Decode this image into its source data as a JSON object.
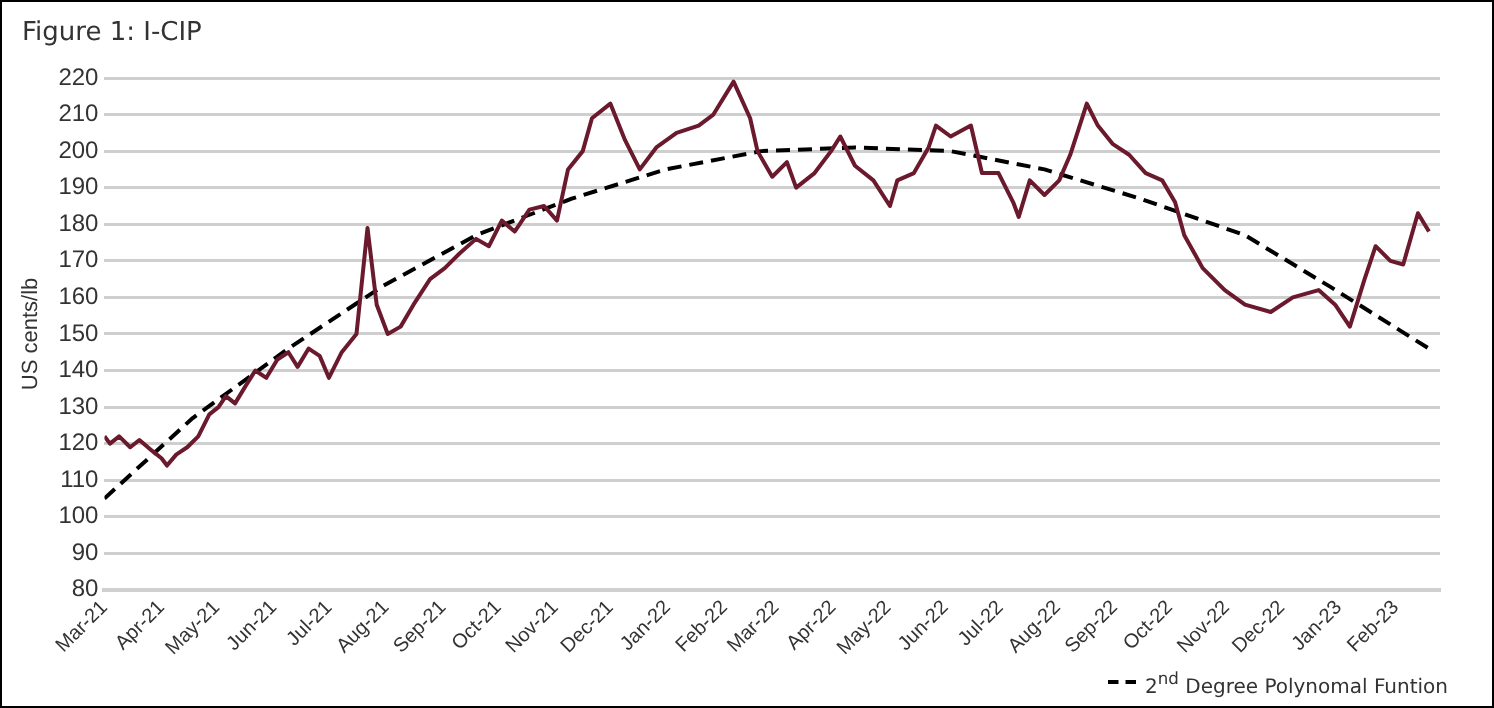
{
  "chart_data": {
    "type": "line",
    "title": "Figure 1: I-CIP",
    "ylabel": "US cents/lb",
    "series": [
      {
        "color": "#6b1a2e",
        "x": [
          "2021-03-01",
          "2021-03-04",
          "2021-03-09",
          "2021-03-15",
          "2021-03-20",
          "2021-03-27",
          "2021-04-01",
          "2021-04-04",
          "2021-04-09",
          "2021-04-15",
          "2021-04-21",
          "2021-04-27",
          "2021-05-02",
          "2021-05-06",
          "2021-05-11",
          "2021-05-17",
          "2021-05-22",
          "2021-05-28",
          "2021-06-03",
          "2021-06-09",
          "2021-06-14",
          "2021-06-20",
          "2021-06-26",
          "2021-07-01",
          "2021-07-08",
          "2021-07-16",
          "2021-07-22",
          "2021-07-27",
          "2021-08-02",
          "2021-08-09",
          "2021-08-16",
          "2021-08-25",
          "2021-09-02",
          "2021-09-10",
          "2021-09-19",
          "2021-09-26",
          "2021-10-03",
          "2021-10-10",
          "2021-10-18",
          "2021-10-26",
          "2021-11-02",
          "2021-11-08",
          "2021-11-16",
          "2021-11-21",
          "2021-12-01",
          "2021-12-09",
          "2021-12-17",
          "2021-12-26",
          "2022-01-06",
          "2022-01-18",
          "2022-01-26",
          "2022-02-06",
          "2022-02-15",
          "2022-02-19",
          "2022-02-27",
          "2022-03-07",
          "2022-03-12",
          "2022-03-22",
          "2022-03-31",
          "2022-04-05",
          "2022-04-13",
          "2022-04-23",
          "2022-05-02",
          "2022-05-06",
          "2022-05-15",
          "2022-05-23",
          "2022-05-27",
          "2022-06-04",
          "2022-06-15",
          "2022-06-21",
          "2022-06-30",
          "2022-07-08",
          "2022-07-11",
          "2022-07-17",
          "2022-07-25",
          "2022-08-02",
          "2022-08-08",
          "2022-08-17",
          "2022-08-23",
          "2022-08-31",
          "2022-09-09",
          "2022-09-18",
          "2022-09-27",
          "2022-10-04",
          "2022-10-09",
          "2022-10-19",
          "2022-10-31",
          "2022-11-11",
          "2022-11-25",
          "2022-12-07",
          "2022-12-21",
          "2022-12-30",
          "2023-01-07",
          "2023-01-15",
          "2023-01-21",
          "2023-01-29",
          "2023-02-05",
          "2023-02-13",
          "2023-02-19"
        ],
        "values": [
          122,
          120,
          122,
          119,
          121,
          118,
          116,
          114,
          117,
          119,
          122,
          128,
          130,
          133,
          131,
          136,
          140,
          138,
          143,
          145,
          141,
          146,
          144,
          138,
          145,
          150,
          179,
          158,
          150,
          152,
          158,
          165,
          168,
          172,
          176,
          174,
          181,
          178,
          184,
          185,
          181,
          195,
          200,
          209,
          213,
          203,
          195,
          201,
          205,
          207,
          210,
          219,
          209,
          200,
          193,
          197,
          190,
          194,
          200,
          204,
          196,
          192,
          185,
          192,
          194,
          201,
          207,
          204,
          207,
          194,
          194,
          186,
          182,
          192,
          188,
          192,
          199,
          213,
          207,
          202,
          199,
          194,
          192,
          186,
          177,
          168,
          162,
          158,
          156,
          160,
          162,
          158,
          152,
          165,
          174,
          170,
          169,
          183,
          178
        ]
      },
      {
        "name": "2$^{nd}$ Degree Polynomal Funtion",
        "color": "#000000",
        "line_style": "dashed",
        "x": [
          "2021-03-01",
          "2021-04-18",
          "2021-06-09",
          "2021-07-30",
          "2021-09-19",
          "2021-11-10",
          "2021-12-31",
          "2022-02-21",
          "2022-04-13",
          "2022-06-04",
          "2022-07-25",
          "2022-09-15",
          "2022-11-11",
          "2022-12-27",
          "2023-02-19"
        ],
        "values": [
          105,
          127,
          146,
          163,
          177,
          187,
          195,
          200,
          201,
          200,
          195,
          187,
          177,
          163,
          146
        ]
      }
    ],
    "xlim": [
      "2021-03-01",
      "2023-02-25"
    ],
    "xticks": [
      {
        "value": "2021-03-01",
        "label": "Mar-21"
      },
      {
        "value": "2021-04-01",
        "label": "Apr-21"
      },
      {
        "value": "2021-05-01",
        "label": "May-21"
      },
      {
        "value": "2021-06-01",
        "label": "Jun-21"
      },
      {
        "value": "2021-07-01",
        "label": "Jul-21"
      },
      {
        "value": "2021-08-01",
        "label": "Aug-21"
      },
      {
        "value": "2021-09-01",
        "label": "Sep-21"
      },
      {
        "value": "2021-10-01",
        "label": "Oct-21"
      },
      {
        "value": "2021-11-01",
        "label": "Nov-21"
      },
      {
        "value": "2021-12-01",
        "label": "Dec-21"
      },
      {
        "value": "2022-01-01",
        "label": "Jan-22"
      },
      {
        "value": "2022-02-01",
        "label": "Feb-22"
      },
      {
        "value": "2022-03-01",
        "label": "Mar-22"
      },
      {
        "value": "2022-04-01",
        "label": "Apr-22"
      },
      {
        "value": "2022-05-01",
        "label": "May-22"
      },
      {
        "value": "2022-06-01",
        "label": "Jun-22"
      },
      {
        "value": "2022-07-01",
        "label": "Jul-22"
      },
      {
        "value": "2022-08-01",
        "label": "Aug-22"
      },
      {
        "value": "2022-09-01",
        "label": "Sep-22"
      },
      {
        "value": "2022-10-01",
        "label": "Oct-22"
      },
      {
        "value": "2022-11-01",
        "label": "Nov-22"
      },
      {
        "value": "2022-12-01",
        "label": "Dec-22"
      },
      {
        "value": "2023-01-01",
        "label": "Jan-23"
      },
      {
        "value": "2023-02-01",
        "label": "Feb-23"
      }
    ],
    "ylim": [
      80,
      220
    ],
    "yticks": [
      80,
      90,
      100,
      110,
      120,
      130,
      140,
      150,
      160,
      170,
      180,
      190,
      200,
      210,
      220
    ],
    "grid": "y",
    "legend": "bottom right",
    "marker": "none"
  }
}
